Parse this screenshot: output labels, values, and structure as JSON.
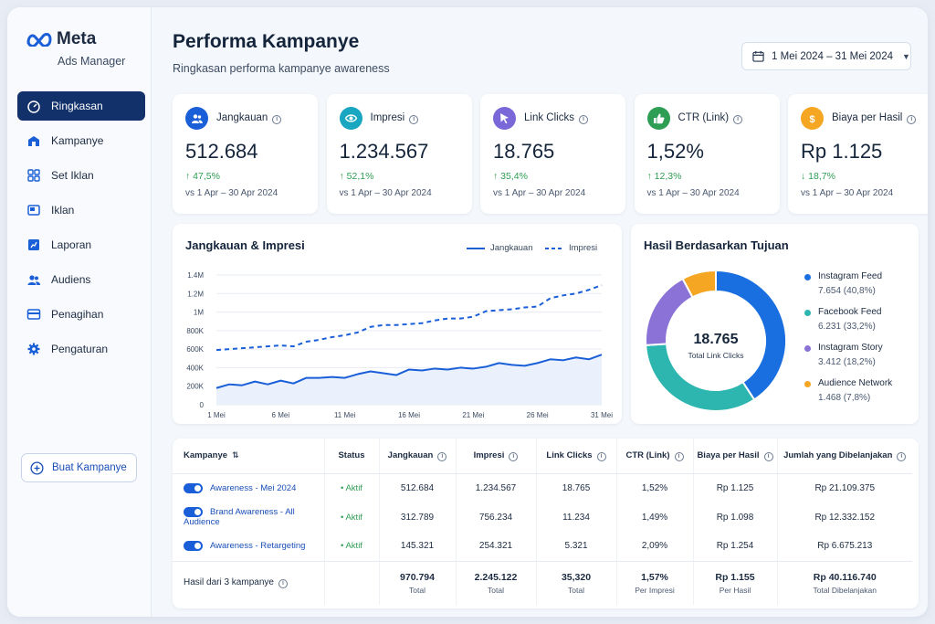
{
  "app": {
    "brand": "Meta",
    "product": "Ads Manager"
  },
  "nav": {
    "items": [
      {
        "label": "Ringkasan",
        "icon": "gauge-icon",
        "active": true
      },
      {
        "label": "Kampanye",
        "icon": "megaphone-icon"
      },
      {
        "label": "Set Iklan",
        "icon": "grid-icon"
      },
      {
        "label": "Iklan",
        "icon": "ad-image-icon"
      },
      {
        "label": "Laporan",
        "icon": "report-chart-icon"
      },
      {
        "label": "Audiens",
        "icon": "people-icon"
      },
      {
        "label": "Penagihan",
        "icon": "credit-card-icon"
      },
      {
        "label": "Pengaturan",
        "icon": "gear-icon"
      }
    ],
    "create_label": "Buat Kampanye"
  },
  "header": {
    "title": "Performa Kampanye",
    "subtitle": "Ringkasan performa kampanye awareness",
    "date_range": "1 Mei 2024 – 31 Mei 2024"
  },
  "kpis": [
    {
      "label": "Jangkauan",
      "value": "512.684",
      "change": "↑ 47,5%",
      "compare": "vs 1 Apr – 30 Apr 2024",
      "color": "#1a5fd8",
      "icon": "people-icon"
    },
    {
      "label": "Impresi",
      "value": "1.234.567",
      "change": "↑ 52,1%",
      "compare": "vs 1 Apr – 30 Apr 2024",
      "color": "#19a6c0",
      "icon": "eye-icon"
    },
    {
      "label": "Link Clicks",
      "value": "18.765",
      "change": "↑ 35,4%",
      "compare": "vs 1 Apr – 30 Apr 2024",
      "color": "#7b68d8",
      "icon": "cursor-icon"
    },
    {
      "label": "CTR (Link)",
      "value": "1,52%",
      "change": "↑ 12,3%",
      "compare": "vs 1 Apr – 30 Apr 2024",
      "color": "#2f9e55",
      "icon": "thumbs-up-icon"
    },
    {
      "label": "Biaya per Hasil",
      "value": "Rp 1.125",
      "change": "↓ 18,7%",
      "compare": "vs 1 Apr – 30 Apr 2024",
      "color": "#f5a623",
      "icon": "dollar-icon"
    }
  ],
  "colors": {
    "accent": "#1a5fd8",
    "nav_active": "#12306a",
    "positive": "#2f9e55"
  },
  "line_chart": {
    "title": "Jangkauan & Impresi"
  },
  "donut": {
    "title": "Hasil Berdasarkan Tujuan",
    "center_value": "18.765",
    "center_label": "Total Link Clicks"
  },
  "chart_data": [
    {
      "type": "line",
      "title": "Jangkauan & Impresi",
      "x_ticks": [
        "1 Mei",
        "6 Mei",
        "11 Mei",
        "16 Mei",
        "21 Mei",
        "26 Mei",
        "31 Mei"
      ],
      "y_ticks": [
        "0",
        "200K",
        "400K",
        "600K",
        "800K",
        "1M",
        "1.2M",
        "1.4M"
      ],
      "ylim": [
        0,
        1400000
      ],
      "x": [
        1,
        2,
        3,
        4,
        5,
        6,
        7,
        8,
        9,
        10,
        11,
        12,
        13,
        14,
        15,
        16,
        17,
        18,
        19,
        20,
        21,
        22,
        23,
        24,
        25,
        26,
        27,
        28,
        29,
        30,
        31
      ],
      "series": [
        {
          "name": "Jangkauan",
          "style": "solid",
          "color": "#1a5fd8",
          "values": [
            180000,
            220000,
            210000,
            250000,
            220000,
            260000,
            230000,
            290000,
            290000,
            300000,
            290000,
            330000,
            360000,
            340000,
            320000,
            380000,
            370000,
            390000,
            380000,
            400000,
            390000,
            410000,
            450000,
            430000,
            420000,
            450000,
            490000,
            480000,
            510000,
            490000,
            540000
          ]
        },
        {
          "name": "Impresi",
          "style": "dashed",
          "color": "#1a5fd8",
          "values": [
            590000,
            600000,
            610000,
            620000,
            630000,
            640000,
            630000,
            680000,
            700000,
            730000,
            750000,
            780000,
            840000,
            860000,
            860000,
            870000,
            880000,
            910000,
            930000,
            930000,
            950000,
            1010000,
            1020000,
            1030000,
            1050000,
            1060000,
            1150000,
            1180000,
            1200000,
            1240000,
            1290000
          ]
        }
      ],
      "legend": "top-right",
      "grid": true
    },
    {
      "type": "pie",
      "title": "Hasil Berdasarkan Tujuan",
      "center_value": "18.765",
      "center_label": "Total Link Clicks",
      "slices": [
        {
          "name": "Instagram Feed",
          "value": 7654,
          "percent": "40,8%",
          "display": "7.654 (40,8%)",
          "color": "#1a6fe0"
        },
        {
          "name": "Facebook Feed",
          "value": 6231,
          "percent": "33,2%",
          "display": "6.231 (33,2%)",
          "color": "#2db5b0"
        },
        {
          "name": "Instagram Story",
          "value": 3412,
          "percent": "18,2%",
          "display": "3.412 (18,2%)",
          "color": "#8a72d6"
        },
        {
          "name": "Audience Network",
          "value": 1468,
          "percent": "7,8%",
          "display": "1.468 (7,8%)",
          "color": "#f5a623"
        }
      ],
      "legend": "right"
    }
  ],
  "table": {
    "headers": [
      "Kampanye",
      "Status",
      "Jangkauan",
      "Impresi",
      "Link Clicks",
      "CTR (Link)",
      "Biaya per Hasil",
      "Jumlah yang Dibelanjakan"
    ],
    "rows": [
      {
        "name": "Awareness - Mei 2024",
        "status": "• Aktif",
        "reach": "512.684",
        "impressions": "1.234.567",
        "clicks": "18.765",
        "ctr": "1,52%",
        "cpr": "Rp 1.125",
        "spend": "Rp 21.109.375"
      },
      {
        "name": "Brand Awareness - All Audience",
        "status": "• Aktif",
        "reach": "312.789",
        "impressions": "756.234",
        "clicks": "11.234",
        "ctr": "1,49%",
        "cpr": "Rp 1.098",
        "spend": "Rp 12.332.152"
      },
      {
        "name": "Awareness - Retargeting",
        "status": "• Aktif",
        "reach": "145.321",
        "impressions": "254.321",
        "clicks": "5.321",
        "ctr": "2,09%",
        "cpr": "Rp 1.254",
        "spend": "Rp 6.675.213"
      }
    ],
    "totals": {
      "label": "Hasil dari 3 kampanye",
      "reach": "970.794",
      "reach_sub": "Total",
      "impressions": "2.245.122",
      "impressions_sub": "Total",
      "clicks": "35,320",
      "clicks_sub": "Total",
      "ctr": "1,57%",
      "ctr_sub": "Per Impresi",
      "cpr": "Rp 1.155",
      "cpr_sub": "Per Hasil",
      "spend": "Rp 40.116.740",
      "spend_sub": "Total Dibelanjakan"
    }
  }
}
